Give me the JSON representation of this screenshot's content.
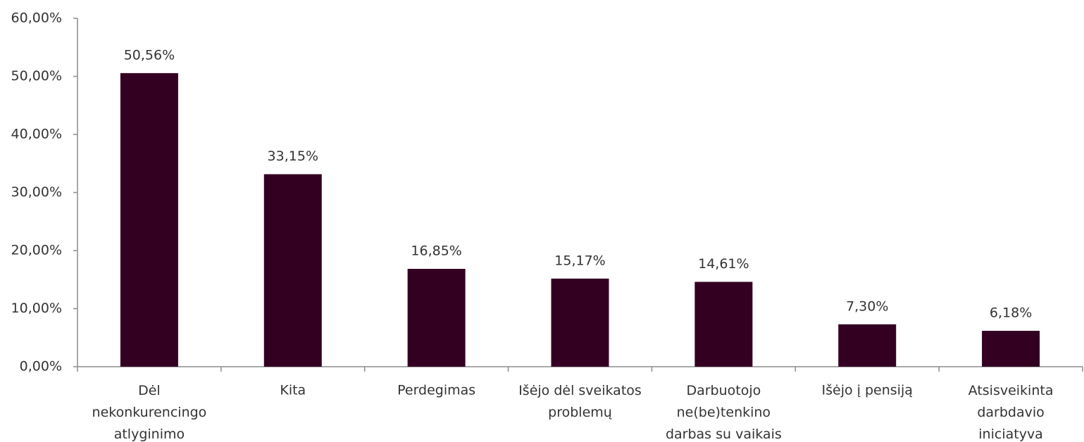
{
  "chart_data": {
    "type": "bar",
    "categories": [
      "Dėl\nnekonkurencingo\natlyginimo",
      "Kita",
      "Perdegimas",
      "Išėjo dėl sveikatos\nproblemų",
      "Darbuotojo\nne(be)tenkino\ndarbas su vaikais",
      "Išėjo į pensiją",
      "Atsisveikinta\ndarbdavio\niniciatyva"
    ],
    "values": [
      50.56,
      33.15,
      16.85,
      15.17,
      14.61,
      7.3,
      6.18
    ],
    "value_labels": [
      "50,56%",
      "33,15%",
      "16,85%",
      "15,17%",
      "14,61%",
      "7,30%",
      "6,18%"
    ],
    "color": "#330022",
    "ylim": [
      0,
      60
    ],
    "yticks": [
      {
        "value": 0,
        "label": "0,00%"
      },
      {
        "value": 10,
        "label": "10,00%"
      },
      {
        "value": 20,
        "label": "20,00%"
      },
      {
        "value": 30,
        "label": "30,00%"
      },
      {
        "value": 40,
        "label": "40,00%"
      },
      {
        "value": 50,
        "label": "50,00%"
      },
      {
        "value": 60,
        "label": "60,00%"
      }
    ],
    "grid": false
  }
}
